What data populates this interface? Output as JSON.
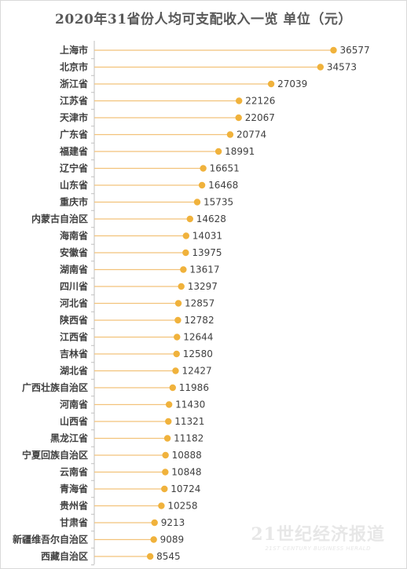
{
  "chart_data": {
    "type": "bar",
    "title": "2020年31省份人均可支配收入一览  单位（元）",
    "orientation": "horizontal-lollipop",
    "categories": [
      "上海市",
      "北京市",
      "浙江省",
      "江苏省",
      "天津市",
      "广东省",
      "福建省",
      "辽宁省",
      "山东省",
      "重庆市",
      "内蒙古自治区",
      "海南省",
      "安徽省",
      "湖南省",
      "四川省",
      "河北省",
      "陕西省",
      "江西省",
      "吉林省",
      "湖北省",
      "广西壮族自治区",
      "河南省",
      "山西省",
      "黑龙江省",
      "宁夏回族自治区",
      "云南省",
      "青海省",
      "贵州省",
      "甘肃省",
      "新疆维吾尔自治区",
      "西藏自治区"
    ],
    "values": [
      36577,
      34573,
      27039,
      22126,
      22067,
      20774,
      18991,
      16651,
      16468,
      15735,
      14628,
      14031,
      13975,
      13617,
      13297,
      12857,
      12782,
      12644,
      12580,
      12427,
      11986,
      11430,
      11321,
      11182,
      10888,
      10848,
      10724,
      10258,
      9213,
      9089,
      8545
    ],
    "xlim": [
      0,
      40000
    ],
    "grid": false,
    "legend": "none",
    "colors": {
      "stem": "#f2c27a",
      "dot": "#f0b23c",
      "axis": "#bfbfbf"
    }
  },
  "watermark": {
    "main": "21世纪经济报道",
    "sub": "21ST CENTURY BUSINESS HERALD"
  }
}
